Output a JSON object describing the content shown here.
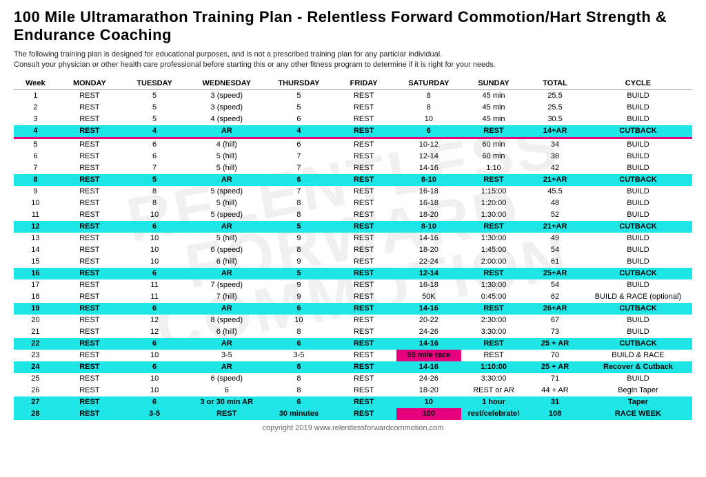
{
  "title": "100 Mile Ultramarathon Training Plan - Relentless Forward Commotion/Hart Strength & Endurance Coaching",
  "disclaimer_line1": "The following training plan is designed for educational purposes, and is not a prescribed training plan for any particlar individual.",
  "disclaimer_line2": "Consult your physician or other health care professional before starting this or any other fitness program to determine if it is right for your needs.",
  "copyright": "copyright 2019 www.relentlessforwardcommotion.com",
  "watermark": "RELENTLESS\nFORWARD\nCOMMOTION",
  "columns": [
    "Week",
    "MONDAY",
    "TUESDAY",
    "WEDNESDAY",
    "THURSDAY",
    "FRIDAY",
    "SATURDAY",
    "SUNDAY",
    "TOTAL",
    "CYCLE"
  ],
  "rows": [
    {
      "cells": [
        "1",
        "REST",
        "5",
        "3 (speed)",
        "5",
        "REST",
        "8",
        "45 min",
        "25.5",
        "BUILD"
      ],
      "highlight": false
    },
    {
      "cells": [
        "2",
        "REST",
        "5",
        "3 (speed)",
        "5",
        "REST",
        "8",
        "45 min",
        "25.5",
        "BUILD"
      ],
      "highlight": false
    },
    {
      "cells": [
        "3",
        "REST",
        "5",
        "4 (speed)",
        "6",
        "REST",
        "10",
        "45 min",
        "30.5",
        "BUILD"
      ],
      "highlight": false
    },
    {
      "cells": [
        "4",
        "REST",
        "4",
        "AR",
        "4",
        "REST",
        "6",
        "REST",
        "14+AR",
        "CUTBACK"
      ],
      "highlight": true,
      "accent": true
    },
    {
      "cells": [
        "5",
        "REST",
        "6",
        "4 (hill)",
        "6",
        "REST",
        "10-12",
        "60 min",
        "34",
        "BUILD"
      ],
      "highlight": false
    },
    {
      "cells": [
        "6",
        "REST",
        "6",
        "5 (hill)",
        "7",
        "REST",
        "12-14",
        "60 min",
        "38",
        "BUILD"
      ],
      "highlight": false
    },
    {
      "cells": [
        "7",
        "REST",
        "7",
        "5 (hill)",
        "7",
        "REST",
        "14-16",
        "1:10",
        "42",
        "BUILD"
      ],
      "highlight": false
    },
    {
      "cells": [
        "8",
        "REST",
        "5",
        "AR",
        "6",
        "REST",
        "8-10",
        "REST",
        "21+AR",
        "CUTBACK"
      ],
      "highlight": true
    },
    {
      "cells": [
        "9",
        "REST",
        "8",
        "5 (speed)",
        "7",
        "REST",
        "16-18",
        "1:15:00",
        "45.5",
        "BUILD"
      ],
      "highlight": false
    },
    {
      "cells": [
        "10",
        "REST",
        "8",
        "5 (hill)",
        "8",
        "REST",
        "16-18",
        "1:20:00",
        "48",
        "BUILD"
      ],
      "highlight": false
    },
    {
      "cells": [
        "11",
        "REST",
        "10",
        "5 (speed)",
        "8",
        "REST",
        "18-20",
        "1:30:00",
        "52",
        "BUILD"
      ],
      "highlight": false
    },
    {
      "cells": [
        "12",
        "REST",
        "6",
        "AR",
        "5",
        "REST",
        "8-10",
        "REST",
        "21+AR",
        "CUTBACK"
      ],
      "highlight": true
    },
    {
      "cells": [
        "13",
        "REST",
        "10",
        "5 (hill)",
        "9",
        "REST",
        "14-16",
        "1:30:00",
        "49",
        "BUILD"
      ],
      "highlight": false
    },
    {
      "cells": [
        "14",
        "REST",
        "10",
        "6 (speed)",
        "8",
        "REST",
        "18-20",
        "1:45:00",
        "54",
        "BUILD"
      ],
      "highlight": false
    },
    {
      "cells": [
        "15",
        "REST",
        "10",
        "6 (hill)",
        "9",
        "REST",
        "22-24",
        "2:00:00",
        "61",
        "BUILD"
      ],
      "highlight": false
    },
    {
      "cells": [
        "16",
        "REST",
        "6",
        "AR",
        "5",
        "REST",
        "12-14",
        "REST",
        "25+AR",
        "CUTBACK"
      ],
      "highlight": true
    },
    {
      "cells": [
        "17",
        "REST",
        "11",
        "7 (speed)",
        "9",
        "REST",
        "16-18",
        "1:30:00",
        "54",
        "BUILD"
      ],
      "highlight": false
    },
    {
      "cells": [
        "18",
        "REST",
        "11",
        "7 (hill)",
        "9",
        "REST",
        "50K",
        "0:45:00",
        "62",
        "BUILD & RACE (optional)"
      ],
      "highlight": false
    },
    {
      "cells": [
        "19",
        "REST",
        "6",
        "AR",
        "6",
        "REST",
        "14-16",
        "REST",
        "26+AR",
        "CUTBACK"
      ],
      "highlight": true
    },
    {
      "cells": [
        "20",
        "REST",
        "12",
        "8 (speed)",
        "10",
        "REST",
        "20-22",
        "2:30:00",
        "67",
        "BUILD"
      ],
      "highlight": false
    },
    {
      "cells": [
        "21",
        "REST",
        "12",
        "6 (hill)",
        "8",
        "REST",
        "24-26",
        "3:30:00",
        "73",
        "BUILD"
      ],
      "highlight": false
    },
    {
      "cells": [
        "22",
        "REST",
        "6",
        "AR",
        "6",
        "REST",
        "14-16",
        "REST",
        "25 + AR",
        "CUTBACK"
      ],
      "highlight": true
    },
    {
      "cells": [
        "23",
        "REST",
        "10",
        "3-5",
        "3-5",
        "REST",
        "50 mile race",
        "REST",
        "70",
        "BUILD & RACE"
      ],
      "highlight": false,
      "race_col": 6
    },
    {
      "cells": [
        "24",
        "REST",
        "6",
        "AR",
        "6",
        "REST",
        "14-16",
        "1:10:00",
        "25 + AR",
        "Recover & Cutback"
      ],
      "highlight": true
    },
    {
      "cells": [
        "25",
        "REST",
        "10",
        "6 (speed)",
        "8",
        "REST",
        "24-26",
        "3:30:00",
        "71",
        "BUILD"
      ],
      "highlight": false
    },
    {
      "cells": [
        "26",
        "REST",
        "10",
        "6",
        "8",
        "REST",
        "18-20",
        "REST or AR",
        "44 + AR",
        "Begin Taper"
      ],
      "highlight": false
    },
    {
      "cells": [
        "27",
        "REST",
        "6",
        "3 or 30 min AR",
        "6",
        "REST",
        "10",
        "1 hour",
        "31",
        "Taper"
      ],
      "highlight": true
    },
    {
      "cells": [
        "28",
        "REST",
        "3-5",
        "REST",
        "30 minutes",
        "REST",
        "100",
        "rest/celebrate!",
        "108",
        "RACE WEEK"
      ],
      "highlight": true,
      "race_col": 6
    }
  ],
  "colors": {
    "cutback_bg": "#1ee6e6",
    "accent": "#e6007e",
    "text": "#000000",
    "bg": "#ffffff"
  }
}
